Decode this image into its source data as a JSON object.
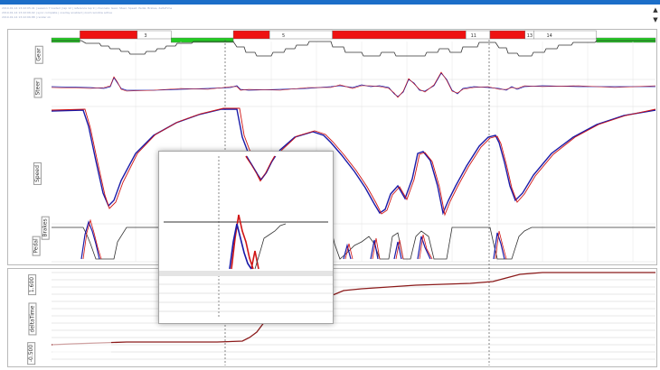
{
  "window": {
    "scroll_up_glyph": "▲",
    "scroll_down_glyph": "▼"
  },
  "log_lines": [
    "2019-01-14 13:22:05.41 | session 7 loaded | lap 12 | reference lap 9 | channels: Gear, Steer, Speed, Pedal, Brakes, deltaTime",
    "2019-01-14 13:22:06.02 | sync complete | overlay enabled | zoom window active",
    "2019-01-14 13:22:06.88 | render ok"
  ],
  "channels": {
    "gear": "Gear",
    "steer": "Steer",
    "speed": "Speed",
    "pedal": "Pedal",
    "brakes": "Brakes",
    "deltatime": "deltaTime"
  },
  "delta_scale": {
    "max": "1.600",
    "min": "-0.500"
  },
  "track_segments": [
    {
      "label": "",
      "color": "#22cc22",
      "start": 0.0,
      "end": 0.047
    },
    {
      "label": "",
      "color": "#ee1111",
      "start": 0.047,
      "end": 0.142
    },
    {
      "label": "3",
      "color": "#ffffff",
      "start": 0.142,
      "end": 0.198
    },
    {
      "label": "",
      "color": "#22cc22",
      "start": 0.198,
      "end": 0.301
    },
    {
      "label": "",
      "color": "#ee1111",
      "start": 0.301,
      "end": 0.361
    },
    {
      "label": "5",
      "color": "#ffffff",
      "start": 0.361,
      "end": 0.465
    },
    {
      "label": "",
      "color": "#ee1111",
      "start": 0.465,
      "end": 0.686
    },
    {
      "label": "11",
      "color": "#ffffff",
      "start": 0.686,
      "end": 0.726
    },
    {
      "label": "",
      "color": "#ee1111",
      "start": 0.726,
      "end": 0.784
    },
    {
      "label": "13",
      "color": "#ffffff",
      "start": 0.784,
      "end": 0.799
    },
    {
      "label": "14",
      "color": "#ffffff",
      "start": 0.799,
      "end": 0.902
    },
    {
      "label": "",
      "color": "#22cc22",
      "start": 0.902,
      "end": 1.0
    }
  ],
  "colors": {
    "current_lap": "#d01515",
    "reference_lap": "#1a1aa8",
    "trace": "#333333",
    "delta": "#8b1a1a",
    "grid": "#c8c8c8"
  }
}
